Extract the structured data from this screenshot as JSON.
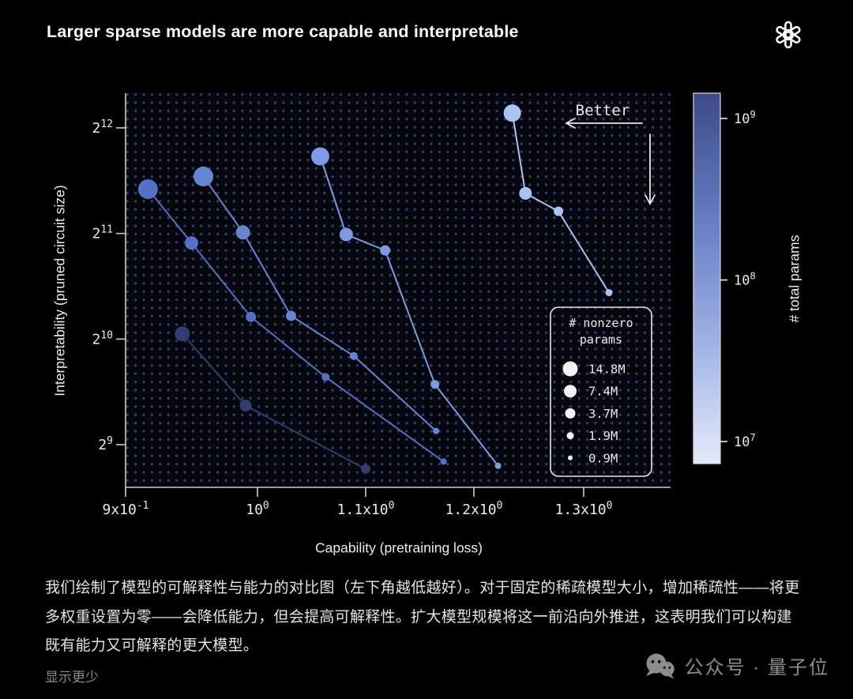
{
  "header": {
    "title": "Larger sparse models are more capable and interpretable"
  },
  "chart_data": {
    "type": "scatter",
    "x_scale": "log",
    "y_scale": "log2",
    "xlabel": "Capability (pretraining loss)",
    "ylabel": "Interpretability (pruned circuit size)",
    "xlim": [
      0.9,
      1.35
    ],
    "ylim_log2": [
      8.7,
      12.3
    ],
    "grid": "dotted-background",
    "x_ticks": [
      {
        "value": 0.9,
        "base": "9x10",
        "sup": "-1"
      },
      {
        "value": 1.0,
        "base": "10",
        "sup": "0"
      },
      {
        "value": 1.1,
        "base": "1.1x10",
        "sup": "0"
      },
      {
        "value": 1.2,
        "base": "1.2x10",
        "sup": "0"
      },
      {
        "value": 1.3,
        "base": "1.3x10",
        "sup": "0"
      }
    ],
    "y_ticks": [
      {
        "log2": 12,
        "base": "2",
        "sup": "12"
      },
      {
        "log2": 11,
        "base": "2",
        "sup": "11"
      },
      {
        "log2": 10,
        "base": "2",
        "sup": "10"
      },
      {
        "log2": 9,
        "base": "2",
        "sup": "9"
      }
    ],
    "annotation": {
      "text": "Better",
      "direction": "left-and-down"
    },
    "legend": {
      "title_lines": [
        "# nonzero",
        "params"
      ],
      "entries": [
        {
          "label": "14.8M",
          "r": 9.5
        },
        {
          "label": "7.4M",
          "r": 8
        },
        {
          "label": "3.7M",
          "r": 6.5
        },
        {
          "label": "1.9M",
          "r": 4.5
        },
        {
          "label": "0.9M",
          "r": 3
        }
      ]
    },
    "colorbar": {
      "label": "# total params",
      "ticks": [
        {
          "exp": 9,
          "base": "10",
          "sup": "9"
        },
        {
          "exp": 8,
          "base": "10",
          "sup": "8"
        },
        {
          "exp": 7,
          "base": "10",
          "sup": "7"
        }
      ],
      "gradient_top_to_bottom": [
        "#3c4b87",
        "#647bc1",
        "#9eb1e6",
        "#e3eafb"
      ]
    },
    "series": [
      {
        "name": "series-1-darkest-most-total-params",
        "color": "#2f3e6e",
        "points": [
          {
            "loss": 0.943,
            "circuit_log2": 10.05,
            "nonzero_M": 7.4,
            "r": 9.5
          },
          {
            "loss": 0.991,
            "circuit_log2": 9.37,
            "nonzero_M": 3.7,
            "r": 7.5
          },
          {
            "loss": 1.1,
            "circuit_log2": 8.77,
            "nonzero_M": 1.9,
            "r": 6
          }
        ]
      },
      {
        "name": "series-2",
        "color": "#5371c5",
        "points": [
          {
            "loss": 0.917,
            "circuit_log2": 11.42,
            "nonzero_M": 14.8,
            "r": 12.5
          },
          {
            "loss": 0.95,
            "circuit_log2": 10.91,
            "nonzero_M": 7.4,
            "r": 8.5
          },
          {
            "loss": 0.995,
            "circuit_log2": 10.21,
            "nonzero_M": 3.7,
            "r": 6.5
          },
          {
            "loss": 1.063,
            "circuit_log2": 9.64,
            "nonzero_M": 1.9,
            "r": 5
          },
          {
            "loss": 1.172,
            "circuit_log2": 8.84,
            "nonzero_M": 0.9,
            "r": 4
          }
        ]
      },
      {
        "name": "series-3",
        "color": "#6585d3",
        "points": [
          {
            "loss": 0.959,
            "circuit_log2": 11.54,
            "nonzero_M": 14.8,
            "r": 12.5
          },
          {
            "loss": 0.989,
            "circuit_log2": 11.01,
            "nonzero_M": 7.4,
            "r": 9
          },
          {
            "loss": 1.031,
            "circuit_log2": 10.22,
            "nonzero_M": 3.7,
            "r": 6.5
          },
          {
            "loss": 1.089,
            "circuit_log2": 9.84,
            "nonzero_M": 1.9,
            "r": 5
          },
          {
            "loss": 1.165,
            "circuit_log2": 9.13,
            "nonzero_M": 0.9,
            "r": 4
          }
        ]
      },
      {
        "name": "series-4",
        "color": "#7d9ae2",
        "points": [
          {
            "loss": 1.058,
            "circuit_log2": 11.73,
            "nonzero_M": 14.8,
            "r": 11.5
          },
          {
            "loss": 1.082,
            "circuit_log2": 10.99,
            "nonzero_M": 7.4,
            "r": 8.5
          },
          {
            "loss": 1.118,
            "circuit_log2": 10.84,
            "nonzero_M": 3.7,
            "r": 6.5
          },
          {
            "loss": 1.164,
            "circuit_log2": 9.57,
            "nonzero_M": 1.9,
            "r": 5.5
          },
          {
            "loss": 1.222,
            "circuit_log2": 8.8,
            "nonzero_M": 0.9,
            "r": 4
          }
        ]
      },
      {
        "name": "series-5-lightest-fewest-total-params",
        "color": "#a9c3f2",
        "points": [
          {
            "loss": 1.235,
            "circuit_log2": 12.14,
            "nonzero_M": 14.8,
            "r": 11
          },
          {
            "loss": 1.247,
            "circuit_log2": 11.38,
            "nonzero_M": 7.4,
            "r": 8
          },
          {
            "loss": 1.277,
            "circuit_log2": 11.21,
            "nonzero_M": 3.7,
            "r": 6
          },
          {
            "loss": 1.323,
            "circuit_log2": 10.44,
            "nonzero_M": 1.9,
            "r": 4.5
          }
        ]
      }
    ]
  },
  "caption": {
    "text": "我们绘制了模型的可解释性与能力的对比图（左下角越低越好）。对于固定的稀疏模型大小，增加稀疏性——将更多权重设置为零——会降低能力，但会提高可解释性。扩大模型规模将这一前沿向外推进，这表明我们可以构建既有能力又可解释的更大模型。"
  },
  "footer": {
    "show_less": "显示更少",
    "watermark": "公众号 · 量子位"
  },
  "colors": {
    "background": "#000000",
    "text": "#e9e9e9",
    "muted_text": "#8d8d8d",
    "spine": "#cccccc",
    "dot_grid": "#2e3c6a"
  }
}
